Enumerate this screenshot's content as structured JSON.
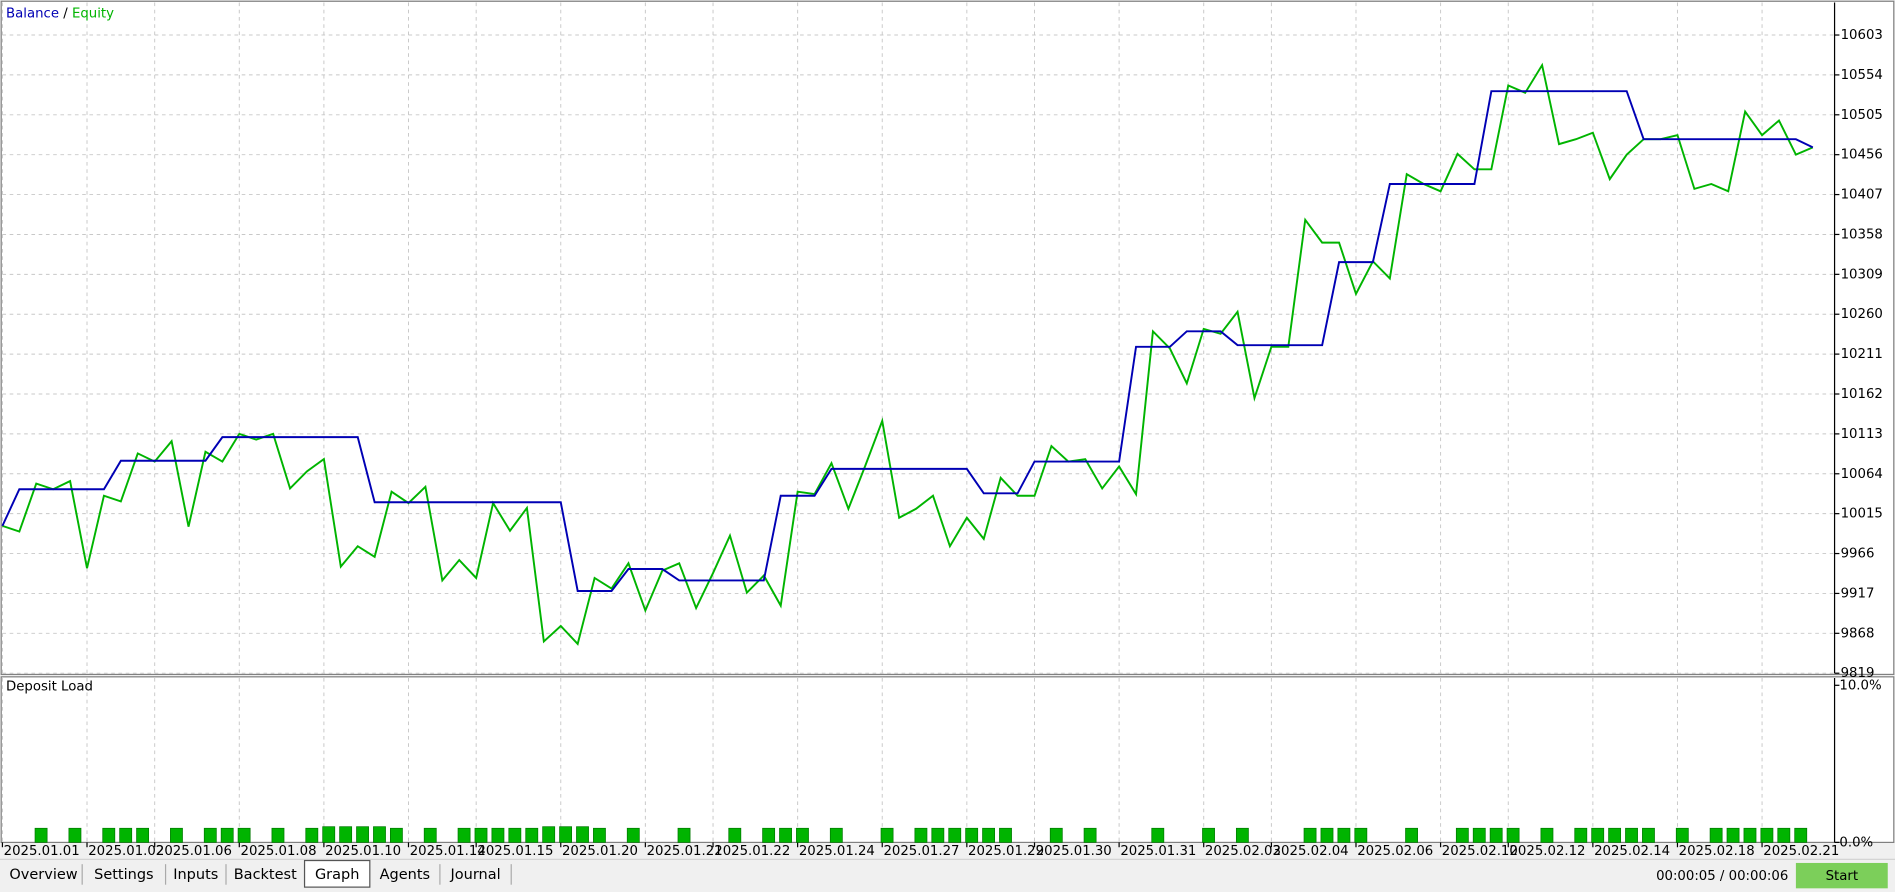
{
  "chart_data": [
    {
      "type": "line",
      "legend_separator": "/",
      "series": [
        {
          "name": "Balance",
          "color": "#0000b4",
          "values": [
            10000,
            10045,
            10045,
            10045,
            10045,
            10045,
            10045,
            10080,
            10080,
            10080,
            10080,
            10080,
            10080,
            10109,
            10109,
            10109,
            10109,
            10109,
            10109,
            10109,
            10109,
            10109,
            10029,
            10029,
            10029,
            10029,
            10029,
            10029,
            10029,
            10029,
            10029,
            10029,
            10029,
            10029,
            9920,
            9920,
            9920,
            9947,
            9947,
            9947,
            9933,
            9933,
            9933,
            9933,
            9933,
            9933,
            10037,
            10037,
            10037,
            10070,
            10070,
            10070,
            10070,
            10070,
            10070,
            10070,
            10070,
            10070,
            10040,
            10040,
            10040,
            10079,
            10079,
            10079,
            10079,
            10079,
            10079,
            10220,
            10220,
            10220,
            10239,
            10239,
            10239,
            10222,
            10222,
            10222,
            10222,
            10222,
            10222,
            10324,
            10324,
            10324,
            10420,
            10420,
            10420,
            10420,
            10420,
            10420,
            10534,
            10534,
            10534,
            10534,
            10534,
            10534,
            10534,
            10534,
            10534,
            10475,
            10475,
            10475,
            10475,
            10475,
            10475,
            10475,
            10475,
            10475,
            10475,
            10465
          ]
        },
        {
          "name": "Equity",
          "color": "#00b400",
          "values": [
            10000,
            9993,
            10052,
            10045,
            10055,
            9948,
            10037,
            10030,
            10089,
            10079,
            10104,
            9999,
            10091,
            10079,
            10113,
            10106,
            10113,
            10046,
            10067,
            10082,
            9950,
            9975,
            9962,
            10042,
            10028,
            10048,
            9933,
            9958,
            9936,
            10028,
            9994,
            10022,
            9858,
            9877,
            9855,
            9936,
            9923,
            9954,
            9896,
            9945,
            9954,
            9899,
            9942,
            9988,
            9918,
            9939,
            9902,
            10042,
            10039,
            10077,
            10021,
            10074,
            10129,
            10010,
            10021,
            10037,
            9975,
            10010,
            9984,
            10059,
            10037,
            10037,
            10098,
            10079,
            10082,
            10046,
            10073,
            10039,
            10239,
            10218,
            10175,
            10242,
            10236,
            10263,
            10157,
            10220,
            10220,
            10376,
            10348,
            10348,
            10285,
            10325,
            10304,
            10432,
            10420,
            10411,
            10457,
            10438,
            10438,
            10541,
            10532,
            10566,
            10469,
            10475,
            10483,
            10426,
            10456,
            10475,
            10475,
            10480,
            10414,
            10420,
            10411,
            10509,
            10480,
            10498,
            10456,
            10465
          ]
        }
      ],
      "ylim": [
        9819,
        10643
      ],
      "yticks": [
        9819,
        9868,
        9917,
        9966,
        10015,
        10064,
        10113,
        10162,
        10211,
        10260,
        10309,
        10358,
        10407,
        10456,
        10505,
        10554,
        10603
      ],
      "grid": true
    },
    {
      "type": "bar",
      "title": "Deposit Load",
      "color": "#00b400",
      "categories": [
        "2025.01.01",
        null,
        null,
        null,
        null,
        "2025.01.02",
        null,
        null,
        null,
        "2025.01.06",
        null,
        null,
        null,
        null,
        "2025.01.08",
        null,
        null,
        null,
        null,
        "2025.01.10",
        null,
        null,
        null,
        null,
        "2025.01.14",
        null,
        null,
        null,
        "2025.01.15",
        null,
        null,
        null,
        null,
        "2025.01.20",
        null,
        null,
        null,
        null,
        "2025.01.21",
        null,
        null,
        null,
        "2025.01.22",
        null,
        null,
        null,
        null,
        "2025.01.24",
        null,
        null,
        null,
        null,
        "2025.01.27",
        null,
        null,
        null,
        null,
        "2025.01.29",
        null,
        null,
        null,
        "2025.01.30",
        null,
        null,
        null,
        null,
        "2025.01.31",
        null,
        null,
        null,
        null,
        "2025.02.03",
        null,
        null,
        null,
        "2025.02.04",
        null,
        null,
        null,
        null,
        "2025.02.06",
        null,
        null,
        null,
        null,
        "2025.02.10",
        null,
        null,
        null,
        "2025.02.12",
        null,
        null,
        null,
        null,
        "2025.02.14",
        null,
        null,
        null,
        null,
        "2025.02.18",
        null,
        null,
        null,
        null,
        "2025.02.21",
        null,
        null,
        null
      ],
      "values": [
        null,
        null,
        0.9,
        null,
        0.9,
        null,
        0.9,
        0.9,
        0.9,
        null,
        0.9,
        null,
        0.9,
        0.9,
        0.9,
        null,
        0.9,
        null,
        0.9,
        1.0,
        1.0,
        1.0,
        1.0,
        0.9,
        null,
        0.9,
        null,
        0.9,
        0.9,
        0.9,
        0.9,
        0.9,
        1.0,
        1.0,
        1.0,
        0.9,
        null,
        0.9,
        null,
        null,
        0.9,
        null,
        null,
        0.9,
        null,
        0.9,
        0.9,
        0.9,
        null,
        0.9,
        null,
        null,
        0.9,
        null,
        0.9,
        0.9,
        0.9,
        0.9,
        0.9,
        0.9,
        null,
        null,
        0.9,
        null,
        0.9,
        null,
        null,
        null,
        0.9,
        null,
        null,
        0.9,
        null,
        0.9,
        null,
        null,
        null,
        0.9,
        0.9,
        0.9,
        0.9,
        null,
        null,
        0.9,
        null,
        null,
        0.9,
        0.9,
        0.9,
        0.9,
        null,
        0.9,
        null,
        0.9,
        0.9,
        0.9,
        0.9,
        0.9,
        null,
        0.9,
        null,
        0.9,
        0.9,
        0.9,
        0.9,
        0.9,
        0.9,
        null
      ],
      "ylim": [
        0,
        10.5
      ],
      "yticks": [
        {
          "value": 0,
          "label": "0.0%"
        },
        {
          "value": 10,
          "label": "10.0%"
        }
      ]
    }
  ],
  "tabs": [
    "Overview",
    "Settings",
    "Inputs",
    "Backtest",
    "Graph",
    "Agents",
    "Journal"
  ],
  "active_tab": 4,
  "timer": "00:00:05 / 00:00:06",
  "start_button": "Start"
}
